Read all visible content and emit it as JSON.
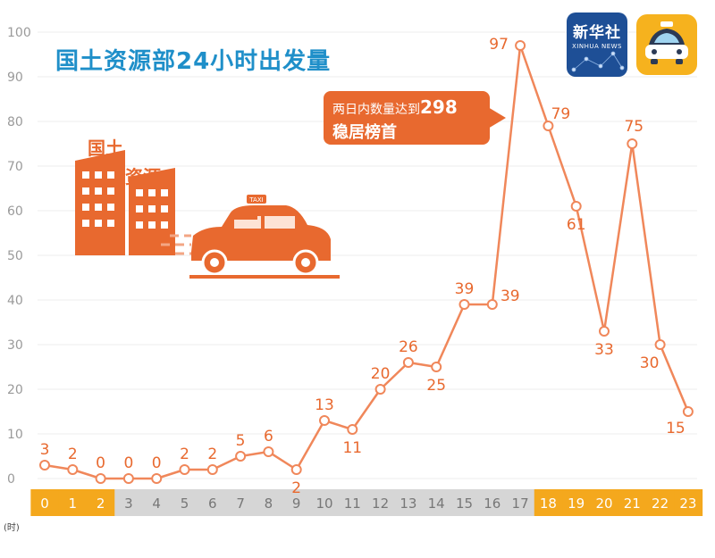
{
  "title": "国土资源部24小时出发量",
  "callout": {
    "line1": "两日内数量达到",
    "number": "298",
    "line2": "稳居榜首"
  },
  "logos": {
    "xinhua_cn": "新华社",
    "xinhua_en": "XINHUA NEWS"
  },
  "illustration_label": {
    "part1": "国土",
    "part2": "资源",
    "taxi_sign": "TAXI"
  },
  "unit_label": "(时)",
  "colors": {
    "line": "#f0875a",
    "label": "#e8692f",
    "highlight": "#f4a81d",
    "gray_band": "#d6d6d6",
    "title": "#1f8fc9"
  },
  "chart_data": {
    "type": "line",
    "title": "国土资源部24小时出发量",
    "categories": [
      "0",
      "1",
      "2",
      "3",
      "4",
      "5",
      "6",
      "7",
      "8",
      "9",
      "10",
      "11",
      "12",
      "13",
      "14",
      "15",
      "16",
      "17",
      "18",
      "19",
      "20",
      "21",
      "22",
      "23"
    ],
    "values": [
      3,
      2,
      0,
      0,
      0,
      2,
      2,
      5,
      6,
      2,
      13,
      11,
      20,
      26,
      25,
      39,
      39,
      97,
      79,
      61,
      33,
      75,
      30,
      15
    ],
    "y_ticks": [
      "0",
      "10",
      "20",
      "30",
      "40",
      "50",
      "60",
      "70",
      "80",
      "90",
      "100"
    ],
    "ylim": [
      0,
      100
    ],
    "highlight_hours": [
      0,
      1,
      2,
      18,
      19,
      20,
      21,
      22,
      23
    ],
    "grid": true
  }
}
